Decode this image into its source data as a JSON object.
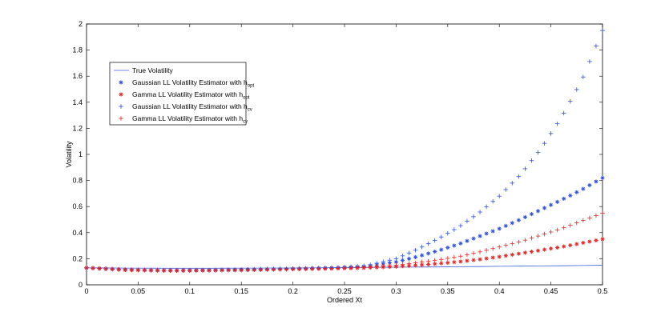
{
  "chart_data": {
    "type": "scatter",
    "title": "",
    "xlabel": "Ordered Xt",
    "ylabel": "Volatility",
    "xlim": [
      0,
      0.5
    ],
    "ylim": [
      0,
      2
    ],
    "grid": false,
    "legend_placement": "upper-left",
    "x_ticks": [
      "0",
      "0.05",
      "0.1",
      "0.15",
      "0.2",
      "0.25",
      "0.3",
      "0.35",
      "0.4",
      "0.45",
      "0.5"
    ],
    "y_ticks": [
      "0",
      "0.2",
      "0.4",
      "0.6",
      "0.8",
      "1",
      "1.2",
      "1.4",
      "1.6",
      "1.8",
      "2"
    ],
    "x_tick_values": [
      0,
      0.05,
      0.1,
      0.15,
      0.2,
      0.25,
      0.3,
      0.35,
      0.4,
      0.45,
      0.5
    ],
    "y_tick_values": [
      0,
      0.2,
      0.4,
      0.6,
      0.8,
      1,
      1.2,
      1.4,
      1.6,
      1.8,
      2
    ],
    "x": [
      0,
      0.04,
      0.08,
      0.12,
      0.16,
      0.2,
      0.24,
      0.27,
      0.3,
      0.32,
      0.34,
      0.36,
      0.38,
      0.4,
      0.42,
      0.44,
      0.46,
      0.48,
      0.5
    ],
    "series": [
      {
        "name": "True Volatility",
        "marker": "line",
        "color": "#3a5fd9",
        "values": [
          0.13,
          0.128,
          0.127,
          0.127,
          0.128,
          0.129,
          0.131,
          0.133,
          0.135,
          0.136,
          0.137,
          0.139,
          0.14,
          0.142,
          0.143,
          0.145,
          0.146,
          0.148,
          0.15
        ]
      },
      {
        "name": "Gaussian LL Volatility Estimator with h",
        "subscript": "opt",
        "marker": "asterisk",
        "color": "#2e4fe0",
        "values": [
          0.13,
          0.115,
          0.11,
          0.112,
          0.117,
          0.123,
          0.13,
          0.14,
          0.175,
          0.215,
          0.26,
          0.31,
          0.37,
          0.43,
          0.5,
          0.575,
          0.65,
          0.73,
          0.82
        ]
      },
      {
        "name": "Gamma LL Volatility Estimator with h",
        "subscript": "opt",
        "marker": "asterisk",
        "color": "#e82222",
        "values": [
          0.13,
          0.113,
          0.108,
          0.11,
          0.114,
          0.12,
          0.125,
          0.13,
          0.14,
          0.15,
          0.162,
          0.176,
          0.194,
          0.215,
          0.24,
          0.265,
          0.29,
          0.32,
          0.35
        ]
      },
      {
        "name": "Gaussian LL Volatility Estimator with h",
        "subscript": "cv",
        "marker": "plus",
        "color": "#2e4fe0",
        "values": [
          0.13,
          0.116,
          0.111,
          0.113,
          0.118,
          0.124,
          0.132,
          0.145,
          0.2,
          0.27,
          0.35,
          0.44,
          0.55,
          0.68,
          0.84,
          1.04,
          1.28,
          1.57,
          1.95
        ]
      },
      {
        "name": "Gamma LL Volatility Estimator with h",
        "subscript": "cv",
        "marker": "plus",
        "color": "#e82222",
        "values": [
          0.13,
          0.114,
          0.109,
          0.111,
          0.115,
          0.121,
          0.127,
          0.133,
          0.15,
          0.17,
          0.19,
          0.215,
          0.25,
          0.29,
          0.33,
          0.38,
          0.43,
          0.49,
          0.55
        ]
      }
    ]
  }
}
